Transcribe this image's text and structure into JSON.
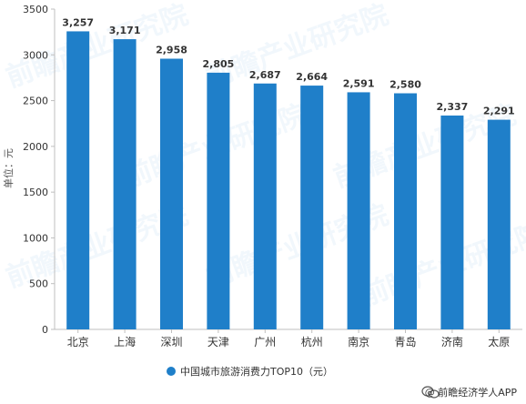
{
  "chart_data": {
    "type": "bar",
    "categories": [
      "北京",
      "上海",
      "深圳",
      "天津",
      "广州",
      "杭州",
      "南京",
      "青岛",
      "济南",
      "太原"
    ],
    "series": [
      {
        "name": "中国城市旅游消费力TOP10（元）",
        "values": [
          3257,
          3171,
          2958,
          2805,
          2687,
          2664,
          2591,
          2580,
          2337,
          2291
        ],
        "labels": [
          "3,257",
          "3,171",
          "2,958",
          "2,805",
          "2,687",
          "2,664",
          "2,591",
          "2,580",
          "2,337",
          "2,291"
        ],
        "color": "#1f7fc9"
      }
    ],
    "ylabel": "单位：元",
    "xlabel": "",
    "ylim": [
      0,
      3500
    ],
    "yticks": [
      0,
      500,
      1000,
      1500,
      2000,
      2500,
      3000,
      3500
    ],
    "grid": false,
    "legend": "bottom-center"
  },
  "credit": {
    "text": "@ 前瞻经济学人APP",
    "icon": "wechat-icon",
    "icon_color": "#555555"
  },
  "watermark": {
    "text": "前瞻产业研究院"
  }
}
